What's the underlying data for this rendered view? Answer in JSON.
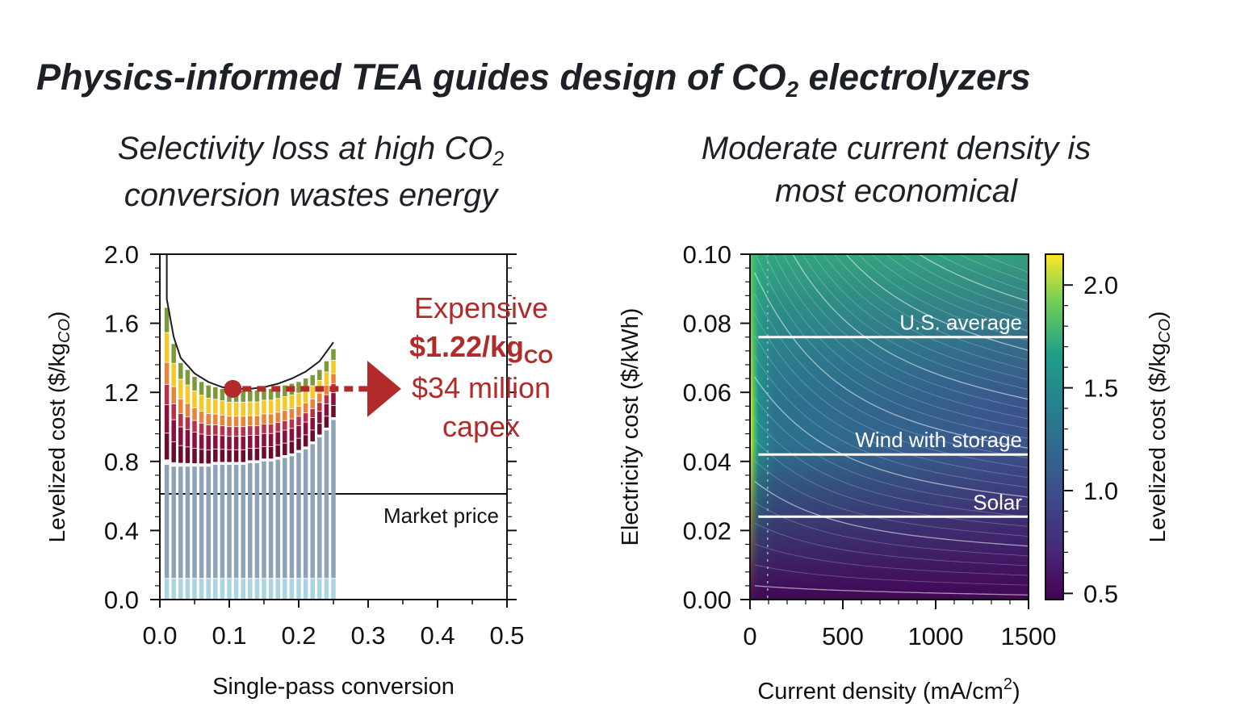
{
  "title": {
    "prefix": "Physics-informed TEA guides design of CO",
    "subscript": "2",
    "suffix": " electrolyzers"
  },
  "colors": {
    "text": "#1e2027",
    "annotation": "#b22a2a",
    "electricity": "#8fa3b8",
    "base": "#a9d4e0",
    "layers": [
      "#f4f5f6",
      "#6b0c2c",
      "#8b0f3c",
      "#b8304a",
      "#e8833a",
      "#f5c92a",
      "#7c9a3c"
    ]
  },
  "chart_data": [
    {
      "id": "left",
      "type": "bar",
      "subtitle": {
        "line1_prefix": "Selectivity loss at high CO",
        "line1_subscript": "2",
        "line2": "conversion wastes energy"
      },
      "xlabel": "Single-pass conversion",
      "ylabel": {
        "prefix": "Levelized cost ($/kg",
        "subscript": "CO",
        "suffix": ")"
      },
      "xlim": [
        0,
        0.5
      ],
      "ylim": [
        0,
        2.0
      ],
      "xticks": [
        "0.0",
        "0.1",
        "0.2",
        "0.3",
        "0.4",
        "0.5"
      ],
      "yticks": [
        "0.0",
        "0.4",
        "0.8",
        "1.2",
        "1.6",
        "2.0"
      ],
      "total_cost_curve": {
        "x": [
          0.01,
          0.02,
          0.03,
          0.05,
          0.07,
          0.09,
          0.11,
          0.13,
          0.15,
          0.17,
          0.19,
          0.21,
          0.23,
          0.25
        ],
        "y": [
          1.74,
          1.52,
          1.4,
          1.31,
          1.26,
          1.23,
          1.22,
          1.22,
          1.23,
          1.25,
          1.28,
          1.32,
          1.38,
          1.49
        ]
      },
      "stacked_bars": {
        "x": [
          0.01,
          0.02,
          0.03,
          0.04,
          0.05,
          0.06,
          0.07,
          0.08,
          0.09,
          0.1,
          0.11,
          0.12,
          0.13,
          0.14,
          0.15,
          0.16,
          0.17,
          0.18,
          0.19,
          0.2,
          0.21,
          0.22,
          0.23,
          0.24,
          0.25
        ],
        "base": 0.12,
        "electricity_top": [
          0.78,
          0.77,
          0.77,
          0.77,
          0.77,
          0.77,
          0.77,
          0.78,
          0.78,
          0.78,
          0.78,
          0.78,
          0.79,
          0.79,
          0.8,
          0.8,
          0.81,
          0.82,
          0.83,
          0.85,
          0.87,
          0.9,
          0.94,
          0.98,
          1.04
        ],
        "bar_top": [
          1.69,
          1.48,
          1.37,
          1.33,
          1.29,
          1.26,
          1.24,
          1.23,
          1.22,
          1.21,
          1.21,
          1.21,
          1.21,
          1.21,
          1.22,
          1.22,
          1.23,
          1.24,
          1.25,
          1.26,
          1.28,
          1.3,
          1.33,
          1.38,
          1.45
        ]
      },
      "market_price": {
        "y": 0.6,
        "label": "Market price"
      },
      "optimum": {
        "x": 0.105,
        "y": 1.22
      },
      "annotation": {
        "line1": "Expensive",
        "line2_prefix": "$1.22/kg",
        "line2_subscript": "CO",
        "line3": "$34 million",
        "line4": "capex"
      }
    },
    {
      "id": "right",
      "type": "heatmap",
      "subtitle": {
        "line1": "Moderate current density is",
        "line2": "most economical"
      },
      "xlabel": {
        "prefix": "Current density (mA/cm",
        "superscript": "2",
        "suffix": ")"
      },
      "ylabel": "Electricity cost ($/kWh)",
      "xlim": [
        0,
        1500
      ],
      "ylim": [
        0,
        0.1
      ],
      "xticks": [
        "0",
        "500",
        "1000",
        "1500"
      ],
      "yticks": [
        "0.00",
        "0.02",
        "0.04",
        "0.06",
        "0.08",
        "0.10"
      ],
      "colorbar": {
        "label": {
          "prefix": "Levelized cost ($/kg",
          "subscript": "CO",
          "suffix": ")"
        },
        "range": [
          0.47,
          2.15
        ],
        "ticks": [
          "0.5",
          "1.0",
          "1.5",
          "2.0"
        ],
        "colormap": "viridis"
      },
      "reference_lines": [
        {
          "label": "U.S. average",
          "y": 0.076
        },
        {
          "label": "Wind with storage",
          "y": 0.042
        },
        {
          "label": "Solar",
          "y": 0.024
        }
      ]
    }
  ]
}
